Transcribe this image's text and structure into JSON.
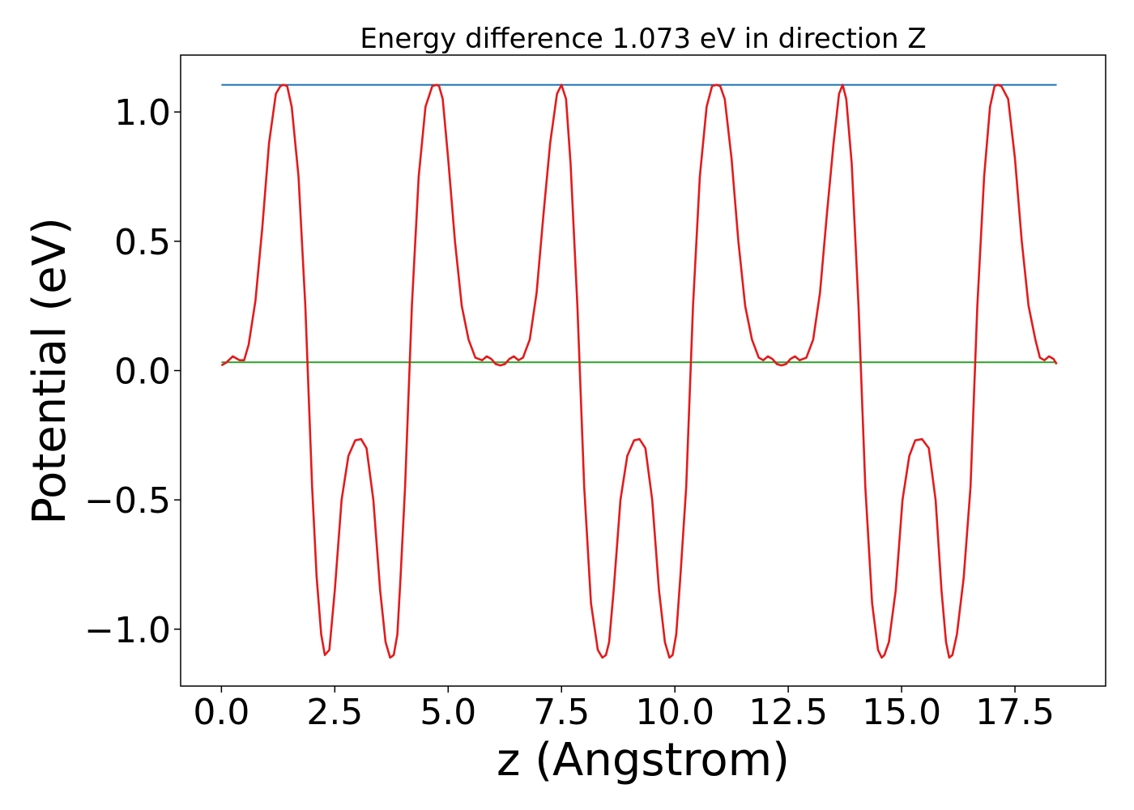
{
  "chart_data": {
    "type": "line",
    "title": "Energy difference 1.073 eV in direction Z",
    "xlabel": "z (Angstrom)",
    "ylabel": "Potential (eV)",
    "xlim": [
      -0.9,
      19.5
    ],
    "ylim": [
      -1.22,
      1.22
    ],
    "grid": false,
    "legend": "none",
    "xticks": [
      0.0,
      2.5,
      5.0,
      7.5,
      10.0,
      12.5,
      15.0,
      17.5
    ],
    "xtick_labels": [
      "0.0",
      "2.5",
      "5.0",
      "7.5",
      "10.0",
      "12.5",
      "15.0",
      "17.5"
    ],
    "yticks": [
      -1.0,
      -0.5,
      0.0,
      0.5,
      1.0
    ],
    "ytick_labels": [
      "−1.0",
      "−0.5",
      "0.0",
      "0.5",
      "1.0"
    ],
    "series": [
      {
        "color": "#1f77b4",
        "x": [
          0.0,
          18.42
        ],
        "y": [
          1.105,
          1.105
        ]
      },
      {
        "color": "#2ca02c",
        "x": [
          0.0,
          18.42
        ],
        "y": [
          0.032,
          0.032
        ]
      },
      {
        "color": "#e41a1c",
        "x": [
          0.0,
          0.1,
          0.25,
          0.4,
          0.5,
          0.6,
          0.75,
          0.9,
          1.05,
          1.2,
          1.3,
          1.37,
          1.45,
          1.55,
          1.7,
          1.85,
          2.0,
          2.1,
          2.2,
          2.28,
          2.38,
          2.5,
          2.65,
          2.8,
          2.95,
          3.08,
          3.2,
          3.35,
          3.5,
          3.62,
          3.72,
          3.8,
          3.88,
          3.95,
          4.05,
          4.2,
          4.35,
          4.5,
          4.65,
          4.75,
          4.8,
          4.88,
          5.0,
          5.15,
          5.3,
          5.45,
          5.6,
          5.75,
          5.85,
          5.95,
          6.05,
          6.15,
          6.25,
          6.35,
          6.45,
          6.55,
          6.65,
          6.8,
          6.95,
          7.1,
          7.25,
          7.4,
          7.5,
          7.6,
          7.7,
          7.85,
          8.0,
          8.15,
          8.3,
          8.4,
          8.48,
          8.55,
          8.65,
          8.8,
          8.95,
          9.1,
          9.22,
          9.35,
          9.5,
          9.65,
          9.78,
          9.88,
          9.95,
          10.03,
          10.12,
          10.25,
          10.4,
          10.55,
          10.7,
          10.82,
          10.92,
          11.0,
          11.1,
          11.25,
          11.4,
          11.55,
          11.7,
          11.85,
          11.95,
          12.05,
          12.15,
          12.25,
          12.35,
          12.45,
          12.55,
          12.65,
          12.75,
          12.9,
          13.05,
          13.2,
          13.35,
          13.5,
          13.62,
          13.7,
          13.78,
          13.9,
          14.05,
          14.2,
          14.35,
          14.48,
          14.56,
          14.62,
          14.72,
          14.87,
          15.02,
          15.17,
          15.3,
          15.45,
          15.6,
          15.75,
          15.88,
          15.98,
          16.05,
          16.12,
          16.22,
          16.37,
          16.52,
          16.67,
          16.82,
          16.95,
          17.05,
          17.12,
          17.2,
          17.35,
          17.5,
          17.65,
          17.8,
          17.95,
          18.05,
          18.15,
          18.25,
          18.35,
          18.42
        ],
        "y": [
          0.02,
          0.03,
          0.055,
          0.04,
          0.04,
          0.1,
          0.27,
          0.55,
          0.88,
          1.07,
          1.1,
          1.105,
          1.1,
          1.02,
          0.75,
          0.25,
          -0.45,
          -0.8,
          -1.02,
          -1.1,
          -1.08,
          -0.85,
          -0.5,
          -0.33,
          -0.27,
          -0.265,
          -0.3,
          -0.5,
          -0.85,
          -1.05,
          -1.11,
          -1.1,
          -1.02,
          -0.8,
          -0.45,
          0.25,
          0.75,
          1.02,
          1.1,
          1.105,
          1.1,
          1.05,
          0.82,
          0.5,
          0.25,
          0.12,
          0.05,
          0.04,
          0.055,
          0.045,
          0.025,
          0.02,
          0.025,
          0.045,
          0.055,
          0.04,
          0.05,
          0.12,
          0.3,
          0.6,
          0.88,
          1.07,
          1.105,
          1.05,
          0.8,
          0.25,
          -0.45,
          -0.9,
          -1.08,
          -1.11,
          -1.1,
          -1.05,
          -0.85,
          -0.5,
          -0.33,
          -0.27,
          -0.265,
          -0.3,
          -0.5,
          -0.85,
          -1.05,
          -1.11,
          -1.1,
          -1.02,
          -0.8,
          -0.45,
          0.25,
          0.75,
          1.02,
          1.1,
          1.105,
          1.1,
          1.05,
          0.82,
          0.5,
          0.25,
          0.12,
          0.05,
          0.04,
          0.055,
          0.045,
          0.025,
          0.02,
          0.025,
          0.045,
          0.055,
          0.04,
          0.05,
          0.12,
          0.3,
          0.6,
          0.88,
          1.07,
          1.105,
          1.05,
          0.8,
          0.25,
          -0.45,
          -0.9,
          -1.08,
          -1.11,
          -1.1,
          -1.05,
          -0.85,
          -0.5,
          -0.33,
          -0.27,
          -0.265,
          -0.3,
          -0.5,
          -0.85,
          -1.05,
          -1.11,
          -1.1,
          -1.02,
          -0.8,
          -0.45,
          0.25,
          0.75,
          1.02,
          1.1,
          1.105,
          1.1,
          1.05,
          0.82,
          0.5,
          0.25,
          0.12,
          0.05,
          0.04,
          0.055,
          0.045,
          0.025
        ]
      }
    ]
  }
}
